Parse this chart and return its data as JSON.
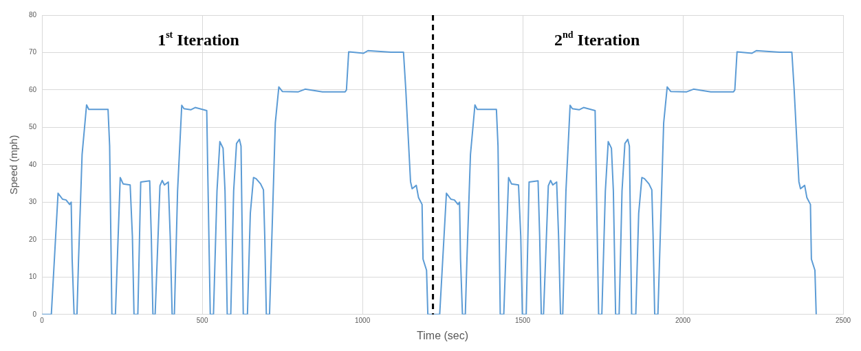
{
  "chart_data": {
    "type": "line",
    "xlabel": "Time (sec)",
    "ylabel": "Speed (mph)",
    "annotations": [
      "1$^{st}$ Iteration",
      "2$^{nd}$ Iteration"
    ],
    "ref_lines": [
      {
        "axis": "x",
        "value": 1220,
        "color": "#000000",
        "line_style": "dashed"
      }
    ],
    "xlim": [
      0,
      2500
    ],
    "xticks": [
      0,
      500,
      1000,
      1500,
      2000,
      2500
    ],
    "ylim": [
      0,
      80
    ],
    "yticks": [
      0,
      10,
      20,
      30,
      40,
      50,
      60,
      70,
      80
    ],
    "grid": true,
    "legend": false,
    "marker": "none",
    "line_style": "solid",
    "series": [
      {
        "color": "#5b9bd5",
        "x": [
          0,
          29,
          50,
          64,
          75,
          86,
          91,
          94,
          100,
          109,
          114,
          125,
          139,
          146,
          206,
          211,
          218,
          229,
          244,
          253,
          275,
          282,
          287,
          299,
          308,
          336,
          341,
          346,
          353,
          368,
          375,
          382,
          394,
          400,
          406,
          413,
          423,
          436,
          443,
          464,
          478,
          514,
          517,
          525,
          535,
          546,
          555,
          565,
          571,
          578,
          589,
          598,
          607,
          616,
          621,
          628,
          641,
          650,
          660,
          668,
          682,
          691,
          695,
          700,
          710,
          728,
          739,
          750,
          800,
          821,
          875,
          946,
          950,
          957,
          1003,
          1017,
          1089,
          1128,
          1135,
          1150,
          1155,
          1168,
          1175,
          1186,
          1189,
          1200,
          1204,
          1241,
          1262,
          1276,
          1287,
          1298,
          1303,
          1306,
          1312,
          1321,
          1326,
          1337,
          1351,
          1358,
          1418,
          1423,
          1430,
          1441,
          1456,
          1465,
          1487,
          1494,
          1499,
          1511,
          1520,
          1548,
          1553,
          1558,
          1565,
          1580,
          1587,
          1594,
          1606,
          1612,
          1618,
          1625,
          1635,
          1648,
          1655,
          1676,
          1690,
          1726,
          1729,
          1737,
          1747,
          1758,
          1767,
          1777,
          1783,
          1790,
          1801,
          1810,
          1819,
          1828,
          1833,
          1840,
          1853,
          1862,
          1872,
          1880,
          1894,
          1903,
          1907,
          1912,
          1922,
          1940,
          1951,
          1962,
          2012,
          2033,
          2087,
          2158,
          2162,
          2169,
          2215,
          2229,
          2301,
          2340,
          2347,
          2362,
          2367,
          2380,
          2387,
          2398,
          2401,
          2412,
          2416
        ],
        "values": [
          0,
          0,
          32.4,
          30.8,
          30.6,
          29.4,
          30,
          14.8,
          0,
          0,
          14.8,
          42.7,
          56,
          54.8,
          54.8,
          45,
          0,
          0,
          36.6,
          34.9,
          34.6,
          20.9,
          0,
          0,
          35.4,
          35.7,
          20.9,
          0,
          0,
          34.4,
          35.8,
          34.6,
          35.4,
          20.9,
          0,
          0,
          33,
          55.9,
          55,
          54.7,
          55.3,
          54.5,
          39,
          0,
          0,
          33,
          46.2,
          44.4,
          33,
          0,
          0,
          33,
          45.7,
          46.8,
          45,
          0,
          0,
          27,
          36.6,
          36.3,
          34.9,
          33.3,
          20.9,
          0,
          0,
          51.2,
          60.8,
          59.6,
          59.5,
          60.2,
          59.5,
          59.5,
          60,
          70.2,
          69.8,
          70.5,
          70.1,
          70.1,
          60.4,
          35.5,
          33.6,
          34.5,
          31.2,
          29.4,
          14.8,
          11.8,
          0,
          0,
          32.4,
          30.8,
          30.6,
          29.4,
          30,
          14.8,
          0,
          0,
          14.8,
          42.7,
          56,
          54.8,
          54.8,
          45,
          0,
          0,
          36.6,
          34.9,
          34.6,
          20.9,
          0,
          0,
          35.4,
          35.7,
          20.9,
          0,
          0,
          34.4,
          35.8,
          34.6,
          35.4,
          20.9,
          0,
          0,
          33,
          55.9,
          55,
          54.7,
          55.3,
          54.5,
          39,
          0,
          0,
          33,
          46.2,
          44.4,
          33,
          0,
          0,
          33,
          45.7,
          46.8,
          45,
          0,
          0,
          27,
          36.6,
          36.3,
          34.9,
          33.3,
          20.9,
          0,
          0,
          51.2,
          60.8,
          59.6,
          59.5,
          60.2,
          59.5,
          59.5,
          60,
          70.2,
          69.8,
          70.5,
          70.1,
          70.1,
          60.4,
          35.5,
          33.6,
          34.5,
          31.2,
          29.4,
          14.8,
          11.8,
          0
        ]
      }
    ]
  }
}
